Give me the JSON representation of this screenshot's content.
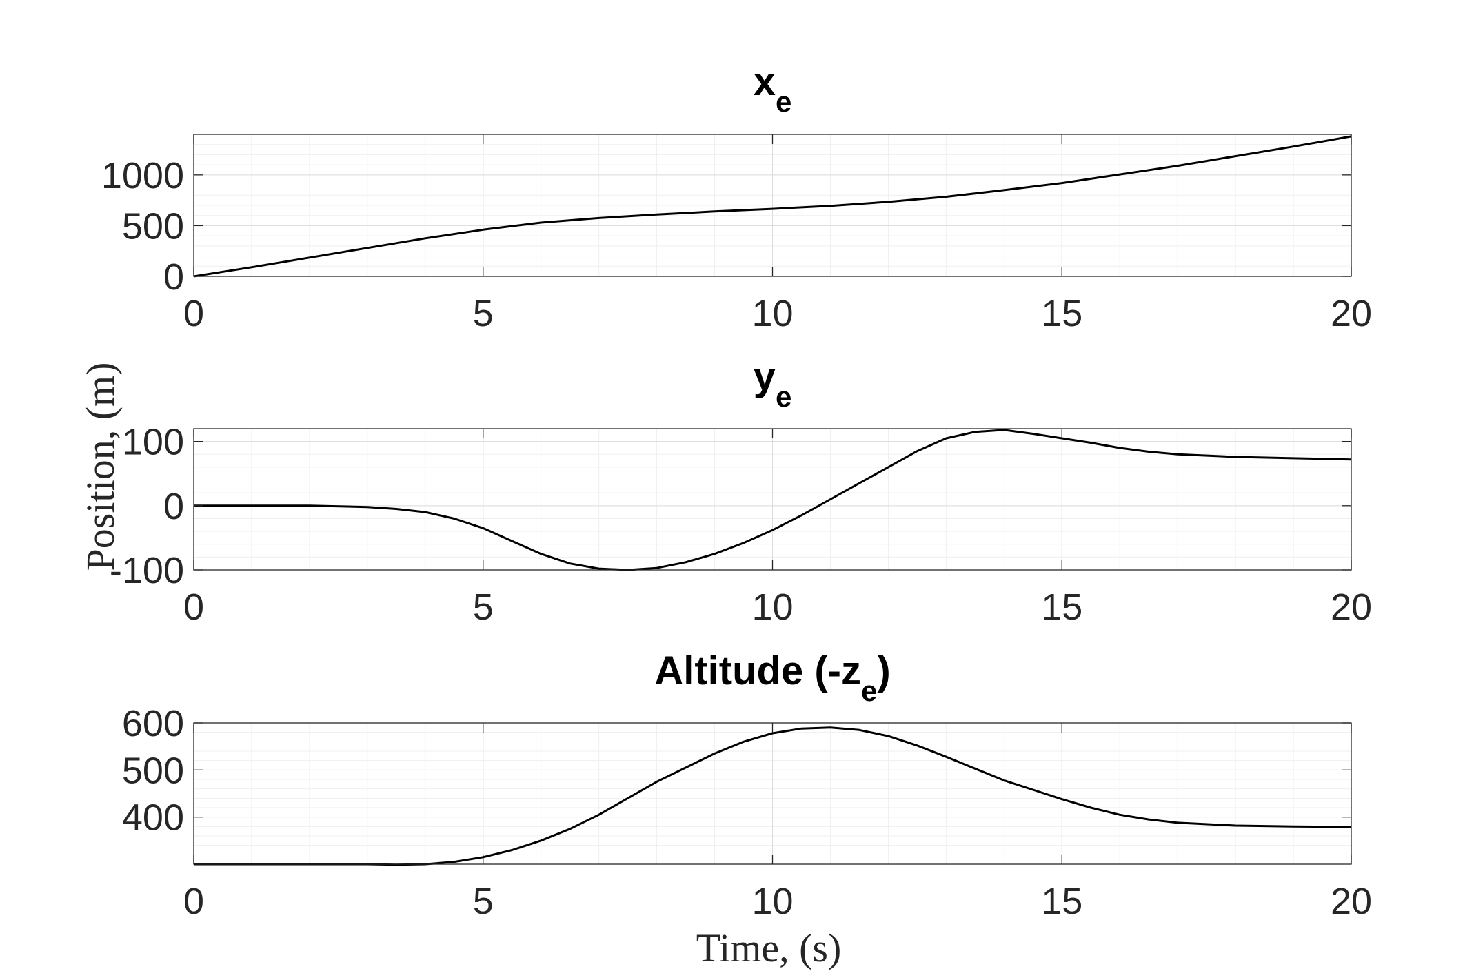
{
  "figure": {
    "ylabel": "Position, (m)",
    "xlabel": "Time, (s)"
  },
  "chart_data": [
    {
      "type": "line",
      "title": {
        "main": "x",
        "sub": "e",
        "suffix": ""
      },
      "xlim": [
        0,
        20
      ],
      "ylim": [
        0,
        1400
      ],
      "xticks": [
        0,
        5,
        10,
        15,
        20
      ],
      "yticks": [
        0,
        500,
        1000
      ],
      "grid": true,
      "minor_grid": true,
      "series": [
        {
          "color": "#000000",
          "x": [
            0,
            1,
            2,
            3,
            4,
            5,
            6,
            7,
            8,
            9,
            10,
            11,
            12,
            13,
            14,
            15,
            16,
            17,
            18,
            19,
            20
          ],
          "y": [
            0,
            90,
            185,
            280,
            375,
            460,
            530,
            575,
            610,
            640,
            665,
            695,
            735,
            785,
            850,
            920,
            1005,
            1090,
            1185,
            1280,
            1380
          ]
        }
      ]
    },
    {
      "type": "line",
      "title": {
        "main": "y",
        "sub": "e",
        "suffix": ""
      },
      "xlim": [
        0,
        20
      ],
      "ylim": [
        -100,
        120
      ],
      "xticks": [
        0,
        5,
        10,
        15,
        20
      ],
      "yticks": [
        -100,
        0,
        100
      ],
      "grid": true,
      "minor_grid": true,
      "series": [
        {
          "color": "#000000",
          "x": [
            0,
            1,
            2,
            3,
            3.5,
            4,
            4.5,
            5,
            5.5,
            6,
            6.5,
            7,
            7.5,
            8,
            8.5,
            9,
            9.5,
            10,
            10.5,
            11,
            11.5,
            12,
            12.5,
            13,
            13.5,
            14,
            14.5,
            15,
            15.5,
            16,
            16.5,
            17,
            18,
            19,
            20
          ],
          "y": [
            0,
            0,
            0,
            -2,
            -5,
            -10,
            -20,
            -35,
            -55,
            -75,
            -90,
            -98,
            -100,
            -97,
            -88,
            -75,
            -58,
            -38,
            -15,
            10,
            35,
            60,
            85,
            105,
            115,
            118,
            112,
            105,
            98,
            90,
            84,
            80,
            76,
            74,
            72
          ]
        }
      ]
    },
    {
      "type": "line",
      "title": {
        "main": "Altitude (-z",
        "sub": "e",
        "suffix": ")"
      },
      "xlim": [
        0,
        20
      ],
      "ylim": [
        300,
        600
      ],
      "xticks": [
        0,
        5,
        10,
        15,
        20
      ],
      "yticks": [
        400,
        500,
        600
      ],
      "grid": true,
      "minor_grid": true,
      "series": [
        {
          "color": "#000000",
          "x": [
            0,
            1,
            2,
            3,
            3.5,
            4,
            4.5,
            5,
            5.5,
            6,
            6.5,
            7,
            7.5,
            8,
            8.5,
            9,
            9.5,
            10,
            10.5,
            11,
            11.5,
            12,
            12.5,
            13,
            13.5,
            14,
            14.5,
            15,
            15.5,
            16,
            16.5,
            17,
            18,
            19,
            20
          ],
          "y": [
            300,
            300,
            300,
            300,
            299,
            300,
            305,
            315,
            330,
            350,
            375,
            405,
            440,
            475,
            505,
            535,
            560,
            578,
            588,
            590,
            585,
            572,
            552,
            528,
            503,
            478,
            458,
            438,
            420,
            405,
            395,
            388,
            382,
            380,
            379
          ]
        }
      ]
    }
  ]
}
